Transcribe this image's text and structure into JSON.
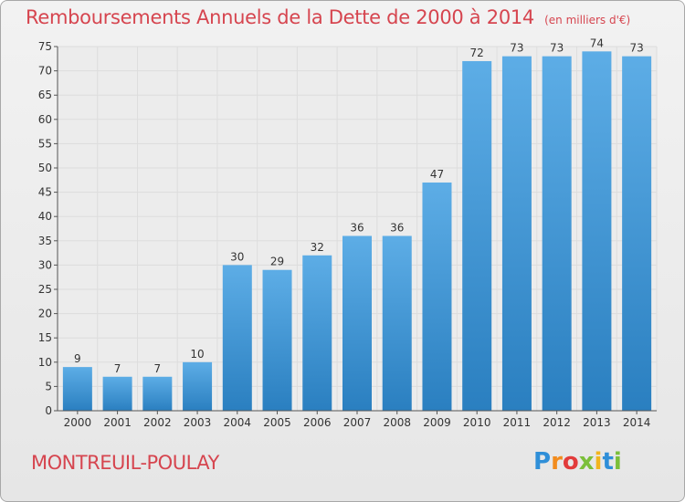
{
  "colors": {
    "title": "#d6454f",
    "bar_light": "#5dade6",
    "bar_dark": "#2a7fc0",
    "axis": "#555555",
    "grid": "#dddddd"
  },
  "chart_data": {
    "type": "bar",
    "title": "Remboursements Annuels de la Dette de 2000 à 2014",
    "unit_note": "(en milliers d'€)",
    "xlabel": "",
    "ylabel": "",
    "categories": [
      "2000",
      "2001",
      "2002",
      "2003",
      "2004",
      "2005",
      "2006",
      "2007",
      "2008",
      "2009",
      "2010",
      "2011",
      "2012",
      "2013",
      "2014"
    ],
    "values": [
      9,
      7,
      7,
      10,
      30,
      29,
      32,
      36,
      36,
      47,
      72,
      73,
      73,
      74,
      73
    ],
    "ylim": [
      0,
      75
    ],
    "yticks": [
      0,
      5,
      10,
      15,
      20,
      25,
      30,
      35,
      40,
      45,
      50,
      55,
      60,
      65,
      70,
      75
    ],
    "grid": true,
    "legend": "none"
  },
  "footer": {
    "commune": "MONTREUIL-POULAY",
    "logo_letters": [
      {
        "char": "P",
        "color": "#2f8fd8"
      },
      {
        "char": "r",
        "color": "#f28c1e"
      },
      {
        "char": "o",
        "color": "#e23b3b"
      },
      {
        "char": "x",
        "color": "#7bbf3a"
      },
      {
        "char": "i",
        "color": "#f2b51e"
      },
      {
        "char": "t",
        "color": "#2f8fd8"
      },
      {
        "char": "i",
        "color": "#7bbf3a"
      }
    ]
  }
}
